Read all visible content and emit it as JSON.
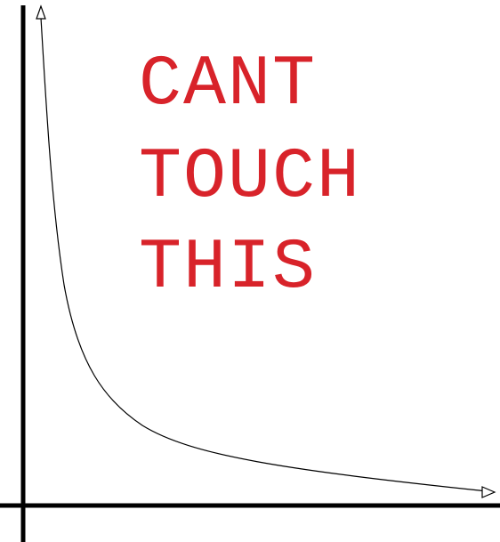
{
  "caption": {
    "lines": [
      "CANT",
      "TOUCH",
      "THIS"
    ],
    "color": "#d8232a"
  },
  "diagram": {
    "axis_color": "#000000",
    "curve_color": "#000000",
    "curve": "hyperbola-like decay approaching both axes (asymptotes)",
    "arrowheads": [
      "curve-top-end",
      "curve-right-end"
    ]
  }
}
